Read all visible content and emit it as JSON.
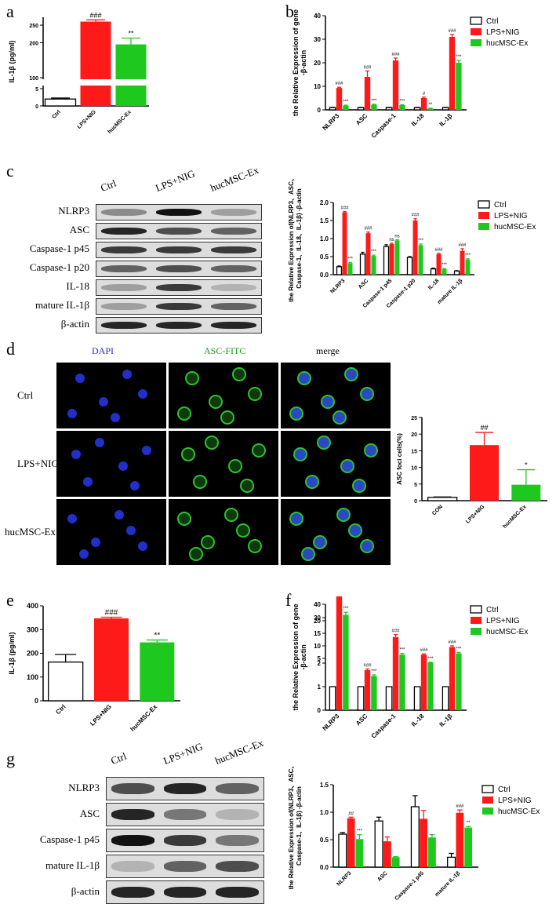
{
  "panels": {
    "a": {
      "letter": "a"
    },
    "b": {
      "letter": "b"
    },
    "c": {
      "letter": "c"
    },
    "d": {
      "letter": "d"
    },
    "e": {
      "letter": "e"
    },
    "f": {
      "letter": "f"
    },
    "g": {
      "letter": "g"
    }
  },
  "legend": [
    "Ctrl",
    "LPS+NIG",
    "hucMSC-Ex"
  ],
  "colors": {
    "ctrl": "#ffffff",
    "lps": "#ff1a1a",
    "huc": "#1ec81e"
  },
  "blot_c": {
    "headers": [
      "Ctrl",
      "LPS+NIG",
      "hucMSC-Ex"
    ],
    "rows": [
      "NLRP3",
      "ASC",
      "Caspase-1 p45",
      "Caspase-1 p20",
      "IL-18",
      "mature IL-1β",
      "β-actin"
    ]
  },
  "blot_g": {
    "headers": [
      "Ctrl",
      "LPS+NIG",
      "hucMSC-Ex"
    ],
    "rows": [
      "NLRP3",
      "ASC",
      "Caspase-1 p45",
      "mature IL-1β",
      "β-actin"
    ]
  },
  "micro_d": {
    "columns": [
      "DAPI",
      "ASC-FITC",
      "merge"
    ],
    "rows": [
      "Ctrl",
      "LPS+NIG",
      "hucMSC-Ex"
    ]
  },
  "chart_data": [
    {
      "id": "a",
      "type": "bar",
      "ylabel": "IL-1β (pg/ml)",
      "categories": [
        "Ctrl",
        "LPS+NIG",
        "hucMSC-Ex"
      ],
      "values": [
        2,
        260,
        195
      ],
      "errors": [
        0.3,
        5,
        18
      ],
      "ticks": [
        "0",
        "5",
        "100",
        "200",
        "250"
      ],
      "annotations": [
        "",
        "###",
        "**"
      ]
    },
    {
      "id": "b",
      "type": "bar",
      "ylabel": "the Relative Expression of gene -β-actin",
      "categories": [
        "NLRP3",
        "ASC",
        "Caspase-1",
        "IL-18",
        "IL-1β"
      ],
      "ylim": [
        0,
        40
      ],
      "ticks": [
        "0",
        "10",
        "20",
        "30",
        "40"
      ],
      "series": [
        {
          "name": "Ctrl",
          "values": [
            1,
            1,
            1,
            1,
            1
          ],
          "errors": [
            0.1,
            0.1,
            0.1,
            0.1,
            0.1
          ],
          "annotations": [
            "",
            "",
            "",
            "",
            ""
          ]
        },
        {
          "name": "LPS+NIG",
          "values": [
            9.3,
            14,
            21,
            5,
            31
          ],
          "errors": [
            0.3,
            2.5,
            1,
            0.4,
            1
          ],
          "annotations": [
            "###",
            "###",
            "###",
            "#",
            "###"
          ]
        },
        {
          "name": "hucMSC-Ex",
          "values": [
            1.8,
            2.2,
            2,
            0.6,
            20
          ],
          "errors": [
            0.2,
            0.2,
            0.2,
            0.1,
            1
          ],
          "annotations": [
            "***",
            "***",
            "***",
            "**",
            "***"
          ]
        }
      ]
    },
    {
      "id": "c",
      "type": "bar",
      "ylabel": "the Relative Expression of(NLRP3、ASC、Caspase-1、IL-18、IL-1β) -β-actin",
      "categories": [
        "NLRP3",
        "ASC",
        "Caspase-1 p45",
        "Caspase-1 p20",
        "IL-18",
        "mature IL-1β"
      ],
      "ylim": [
        0,
        2.0
      ],
      "ticks": [
        "0.0",
        "0.5",
        "1.0",
        "1.5",
        "2.0"
      ],
      "series": [
        {
          "name": "Ctrl",
          "values": [
            0.22,
            0.57,
            0.78,
            0.48,
            0.16,
            0.1
          ],
          "errors": [
            0.02,
            0.05,
            0.05,
            0.02,
            0.02,
            0.01
          ],
          "annotations": [
            "",
            "",
            "",
            "",
            "",
            ""
          ]
        },
        {
          "name": "LPS+NIG",
          "values": [
            1.73,
            1.15,
            0.85,
            1.5,
            0.57,
            0.66
          ],
          "errors": [
            0.02,
            0.03,
            0.02,
            0.05,
            0.02,
            0.06
          ],
          "annotations": [
            "###",
            "###",
            "ns",
            "###",
            "###",
            "###"
          ]
        },
        {
          "name": "hucMSC-Ex",
          "values": [
            0.32,
            0.52,
            0.95,
            0.82,
            0.16,
            0.42
          ],
          "errors": [
            0.02,
            0.02,
            0.02,
            0.03,
            0.01,
            0.02
          ],
          "annotations": [
            "***",
            "***",
            "ns",
            "***",
            "***",
            "***"
          ]
        }
      ]
    },
    {
      "id": "d",
      "type": "bar",
      "ylabel": "ASC foci cells(%)",
      "categories": [
        "CON",
        "LPS+NIG",
        "hucMSC-Ex"
      ],
      "values": [
        1,
        16.7,
        4.8
      ],
      "errors": [
        0.1,
        3.8,
        4.5
      ],
      "ylim": [
        0,
        25
      ],
      "ticks": [
        "0",
        "5",
        "10",
        "15",
        "20",
        "25"
      ],
      "annotations": [
        "",
        "##",
        "*"
      ]
    },
    {
      "id": "e",
      "type": "bar",
      "ylabel": "IL-1β (pg/ml)",
      "categories": [
        "Ctrl",
        "LPS+NIG",
        "hucMSC-Ex"
      ],
      "values": [
        163,
        347,
        246
      ],
      "errors": [
        32,
        5,
        10
      ],
      "ylim": [
        0,
        400
      ],
      "ticks": [
        "0",
        "100",
        "200",
        "300",
        "400"
      ],
      "annotations": [
        "",
        "###",
        "**"
      ]
    },
    {
      "id": "f",
      "type": "bar",
      "ylabel": "the Relative Expression of gene -β-actin",
      "categories": [
        "NLRP3",
        "ASC",
        "Caspase-1",
        "IL-18",
        "IL-1β"
      ],
      "ticks": [
        "0",
        "1",
        "2",
        "5",
        "10",
        "15",
        "20",
        "30",
        "40"
      ],
      "series": [
        {
          "name": "Ctrl",
          "values": [
            1,
            1,
            1,
            1,
            1
          ],
          "errors": [
            0,
            0,
            0,
            0,
            0
          ],
          "annotations": [
            "",
            "",
            "",
            "",
            ""
          ]
        },
        {
          "name": "LPS+NIG",
          "values": [
            48,
            1.7,
            13.5,
            6.5,
            9.5
          ],
          "errors": [
            4,
            0.05,
            1,
            0.3,
            0.5
          ],
          "annotations": [
            "###",
            "###",
            "###",
            "###",
            "###"
          ]
        },
        {
          "name": "hucMSC-Ex",
          "values": [
            32,
            1.45,
            6.5,
            3.3,
            7
          ],
          "errors": [
            2,
            0.05,
            0.5,
            0.2,
            0.4
          ],
          "annotations": [
            "***",
            "***",
            "***",
            "***",
            "***"
          ]
        }
      ]
    },
    {
      "id": "g",
      "type": "bar",
      "ylabel": "the Relative Expression of(NLRP3、ASC、Caspase-1、IL-1β) -β-actin",
      "categories": [
        "NLRP3",
        "ASC",
        "Caspase-1 p45",
        "mature IL-1β"
      ],
      "ylim": [
        0,
        1.5
      ],
      "ticks": [
        "0.0",
        "0.5",
        "1.0",
        "1.5"
      ],
      "series": [
        {
          "name": "Ctrl",
          "values": [
            0.6,
            0.84,
            1.1,
            0.18
          ],
          "errors": [
            0.03,
            0.07,
            0.2,
            0.07
          ],
          "annotations": [
            "",
            "",
            "",
            ""
          ]
        },
        {
          "name": "LPS+NIG",
          "values": [
            0.89,
            0.47,
            0.88,
            0.99
          ],
          "errors": [
            0.02,
            0.08,
            0.15,
            0.05
          ],
          "annotations": [
            "##",
            "",
            "",
            "###"
          ]
        },
        {
          "name": "hucMSC-Ex",
          "values": [
            0.51,
            0.18,
            0.54,
            0.72
          ],
          "errors": [
            0.08,
            0.01,
            0.05,
            0.02
          ],
          "annotations": [
            "***",
            "",
            "",
            "**"
          ]
        }
      ]
    }
  ]
}
